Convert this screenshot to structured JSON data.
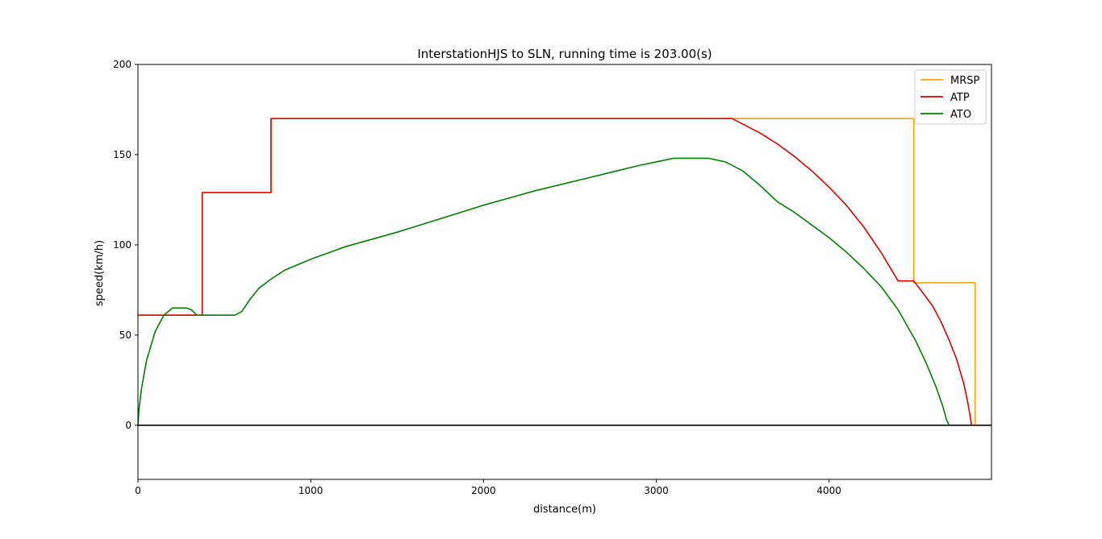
{
  "chart_data": {
    "type": "line",
    "title": "InterstationHJS to SLN, running time is 203.00(s)",
    "xlabel": "distance(m)",
    "ylabel": "speed(km/h)",
    "xlim": [
      0,
      4940
    ],
    "ylim": [
      -30,
      200
    ],
    "xticks": [
      0,
      1000,
      2000,
      3000,
      4000
    ],
    "yticks": [
      0,
      50,
      100,
      150,
      200
    ],
    "grid": false,
    "legend_position": "top-right",
    "baseline": {
      "y": 0,
      "color": "#000000"
    },
    "series": [
      {
        "name": "MRSP",
        "color": "#ffa500",
        "points": [
          [
            0,
            61
          ],
          [
            372,
            61
          ],
          [
            372,
            129
          ],
          [
            770,
            129
          ],
          [
            770,
            170
          ],
          [
            4490,
            170
          ],
          [
            4490,
            79
          ],
          [
            4845,
            79
          ],
          [
            4845,
            0
          ],
          [
            4825,
            0
          ]
        ]
      },
      {
        "name": "ATP",
        "color": "#e00000",
        "points": [
          [
            0,
            61
          ],
          [
            372,
            61
          ],
          [
            372,
            129
          ],
          [
            770,
            129
          ],
          [
            770,
            170
          ],
          [
            3440,
            170
          ],
          [
            3500,
            167
          ],
          [
            3600,
            162
          ],
          [
            3700,
            156
          ],
          [
            3800,
            149
          ],
          [
            3900,
            141
          ],
          [
            4000,
            132
          ],
          [
            4100,
            122
          ],
          [
            4200,
            110
          ],
          [
            4300,
            96
          ],
          [
            4400,
            80
          ],
          [
            4490,
            80
          ],
          [
            4530,
            75
          ],
          [
            4600,
            66
          ],
          [
            4650,
            57
          ],
          [
            4700,
            46
          ],
          [
            4740,
            36
          ],
          [
            4780,
            23
          ],
          [
            4800,
            14
          ],
          [
            4815,
            6
          ],
          [
            4825,
            0
          ]
        ]
      },
      {
        "name": "ATO",
        "color": "#008000",
        "points": [
          [
            0,
            0
          ],
          [
            5,
            8
          ],
          [
            20,
            20
          ],
          [
            50,
            36
          ],
          [
            100,
            52
          ],
          [
            150,
            61
          ],
          [
            200,
            65
          ],
          [
            280,
            65
          ],
          [
            310,
            64
          ],
          [
            340,
            61
          ],
          [
            372,
            61
          ],
          [
            560,
            61
          ],
          [
            600,
            63
          ],
          [
            650,
            70
          ],
          [
            700,
            76
          ],
          [
            770,
            81
          ],
          [
            850,
            86
          ],
          [
            1000,
            92
          ],
          [
            1200,
            99
          ],
          [
            1500,
            107
          ],
          [
            1800,
            116
          ],
          [
            2000,
            122
          ],
          [
            2300,
            130
          ],
          [
            2600,
            137
          ],
          [
            2900,
            144
          ],
          [
            3050,
            147
          ],
          [
            3100,
            148
          ],
          [
            3300,
            148
          ],
          [
            3400,
            146
          ],
          [
            3500,
            141
          ],
          [
            3600,
            133
          ],
          [
            3700,
            124
          ],
          [
            3800,
            118
          ],
          [
            3900,
            111
          ],
          [
            4000,
            104
          ],
          [
            4100,
            96
          ],
          [
            4200,
            87
          ],
          [
            4300,
            77
          ],
          [
            4400,
            64
          ],
          [
            4500,
            47
          ],
          [
            4560,
            35
          ],
          [
            4620,
            21
          ],
          [
            4660,
            10
          ],
          [
            4680,
            3
          ],
          [
            4695,
            0
          ]
        ]
      }
    ]
  }
}
